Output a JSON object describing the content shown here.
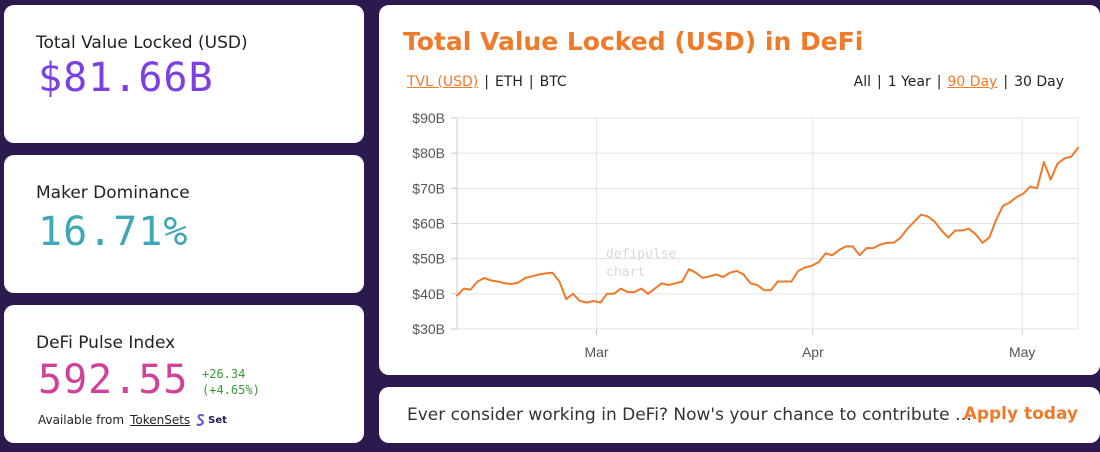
{
  "stats": {
    "tvl": {
      "label": "Total Value Locked (USD)",
      "value": "$81.66B"
    },
    "maker": {
      "label": "Maker Dominance",
      "value": "16.71%"
    },
    "index": {
      "label": "DeFi Pulse Index",
      "value": "592.55",
      "change_abs": "+26.34",
      "change_pct": "(+4.65%)",
      "available_text": "Available from",
      "available_link": "TokenSets",
      "set_logo_text": "Set"
    }
  },
  "chart_panel": {
    "title": "Total Value Locked (USD) in DeFi",
    "currency_options": [
      "TVL (USD)",
      "ETH",
      "BTC"
    ],
    "currency_active": 0,
    "range_options": [
      "All",
      "1 Year",
      "90 Day",
      "30 Day"
    ],
    "range_active": 2,
    "broken_image_alt": "defipulse chart"
  },
  "chart_data": {
    "type": "line",
    "title": "",
    "xlabel": "",
    "ylabel": "",
    "ylim": [
      30,
      90
    ],
    "y_ticks": [
      "$30B",
      "$40B",
      "$50B",
      "$60B",
      "$70B",
      "$80B",
      "$90B"
    ],
    "x_ticks": [
      {
        "label": "Mar",
        "x": 20
      },
      {
        "label": "Apr",
        "x": 51
      },
      {
        "label": "May",
        "x": 81
      }
    ],
    "xlim": [
      0,
      89
    ],
    "grid": true,
    "color": "#ee7a2a",
    "series": [
      {
        "values": [
          39.5,
          41.5,
          41.2,
          43.5,
          44.5,
          43.8,
          43.5,
          43.0,
          42.8,
          43.2,
          44.5,
          45.0,
          45.5,
          45.8,
          46.0,
          43.5,
          38.5,
          40.0,
          38.0,
          37.5,
          38.0,
          37.5,
          40.0,
          40.0,
          41.5,
          40.5,
          40.5,
          41.5,
          40.0,
          41.5,
          43.0,
          42.5,
          43.0,
          43.5,
          47.0,
          46.0,
          44.5,
          45.0,
          45.5,
          44.8,
          46.0,
          46.5,
          45.5,
          43.0,
          42.5,
          41.0,
          41.0,
          43.5,
          43.5,
          43.5,
          46.5,
          47.5,
          48.0,
          49.0,
          51.5,
          51.0,
          52.5,
          53.5,
          53.5,
          51.0,
          53.0,
          53.0,
          54.0,
          54.5,
          54.5,
          56.0,
          58.5,
          60.5,
          62.5,
          62.0,
          60.5,
          58.0,
          56.0,
          58.0,
          58.0,
          58.5,
          57.0,
          54.5,
          56.0,
          61.0,
          65.0,
          66.0,
          67.5,
          68.5,
          70.5,
          70.0,
          77.5,
          72.5,
          77.0,
          78.5,
          79.0,
          81.5
        ]
      }
    ]
  },
  "banner": {
    "text": "Ever consider working in DeFi? Now's your chance to contribute …",
    "link": "Apply today"
  }
}
